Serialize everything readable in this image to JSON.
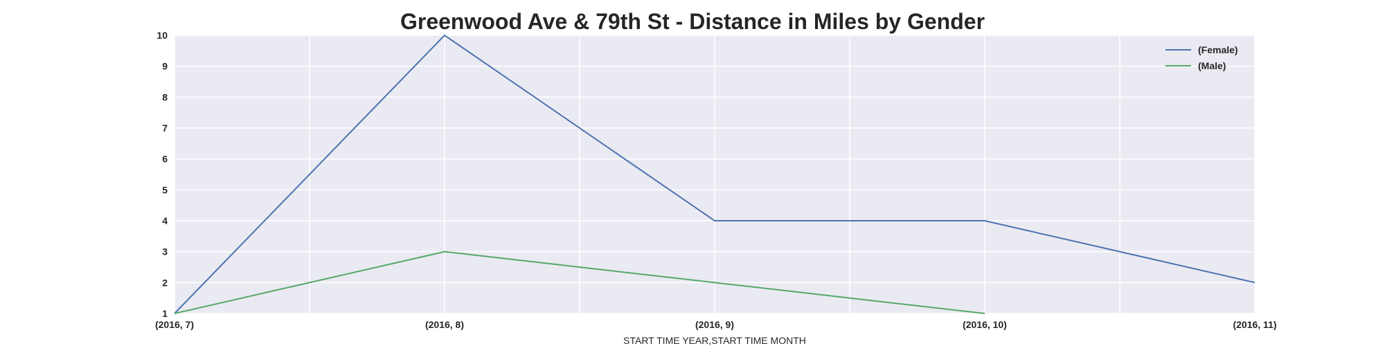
{
  "chart_data": {
    "type": "line",
    "title": "Greenwood Ave & 79th St - Distance in Miles by Gender",
    "xlabel": "START TIME YEAR,START TIME MONTH",
    "ylabel": "",
    "categories": [
      "(2016, 7)",
      "(2016, 8)",
      "(2016, 9)",
      "(2016, 10)",
      "(2016, 11)"
    ],
    "ylim": [
      1,
      10
    ],
    "yticks": [
      "1",
      "2",
      "3",
      "4",
      "5",
      "6",
      "7",
      "8",
      "9",
      "10"
    ],
    "grid": true,
    "legend_position": "top-right",
    "background_color": "#EAEAF2",
    "series": [
      {
        "name": "(Female)",
        "color": "#4C72B0",
        "values": [
          1,
          10,
          4,
          4,
          2
        ]
      },
      {
        "name": "(Male)",
        "color": "#55A868",
        "values": [
          1,
          3,
          2,
          1,
          null
        ]
      }
    ]
  }
}
